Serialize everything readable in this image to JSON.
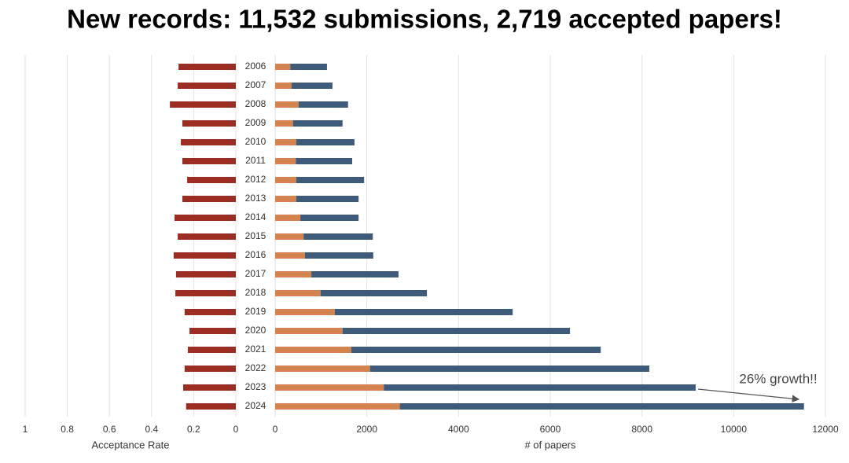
{
  "chart_data": {
    "type": "butterfly",
    "title": "New records: 11,532 submissions, 2,719 accepted papers!",
    "categories": [
      "2006",
      "2007",
      "2008",
      "2009",
      "2010",
      "2011",
      "2012",
      "2013",
      "2014",
      "2015",
      "2016",
      "2017",
      "2018",
      "2019",
      "2020",
      "2021",
      "2022",
      "2023",
      "2024"
    ],
    "grid": true,
    "left": {
      "type": "bar",
      "xlabel": "Acceptance Rate",
      "xlim": [
        1,
        0
      ],
      "xticks": [
        1,
        0.8,
        0.6,
        0.4,
        0.2,
        0
      ],
      "color": "#9b2d23",
      "values": [
        0.272,
        0.276,
        0.313,
        0.254,
        0.261,
        0.254,
        0.231,
        0.254,
        0.291,
        0.276,
        0.295,
        0.284,
        0.287,
        0.243,
        0.22,
        0.228,
        0.243,
        0.25,
        0.236
      ]
    },
    "right": {
      "type": "stacked_bar",
      "xlabel": "# of papers",
      "xlim": [
        0,
        12000
      ],
      "xticks": [
        0,
        2000,
        4000,
        6000,
        8000,
        10000,
        12000
      ],
      "annotation": "26% growth!!",
      "series": [
        {
          "color": "#d4834f",
          "values": [
            330,
            360,
            510,
            390,
            460,
            450,
            460,
            460,
            550,
            620,
            650,
            790,
            990,
            1300,
            1470,
            1660,
            2070,
            2370,
            2719
          ]
        },
        {
          "color": "#3e5b7a",
          "values": [
            800,
            890,
            1080,
            1080,
            1270,
            1230,
            1480,
            1360,
            1270,
            1510,
            1490,
            1900,
            2320,
            3880,
            4960,
            5440,
            6090,
            6800,
            8813
          ]
        }
      ]
    }
  }
}
